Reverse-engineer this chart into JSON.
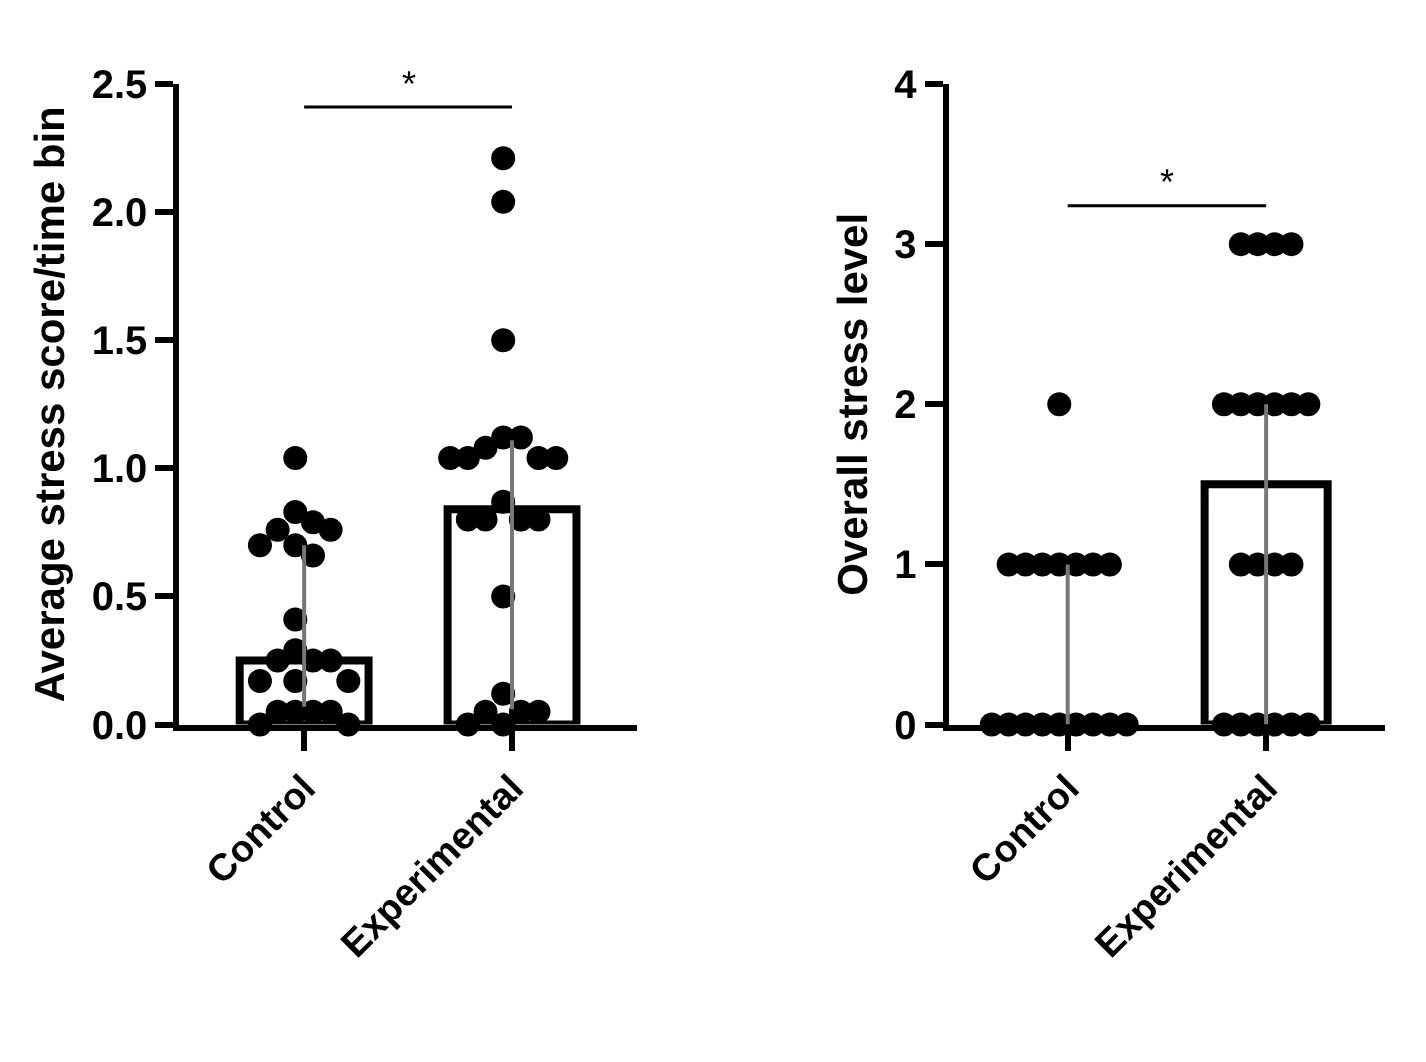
{
  "chart_data": [
    {
      "type": "bar",
      "ylabel": "Average stress score/time bin",
      "categories": [
        "Control",
        "Experimental"
      ],
      "values": [
        0.25,
        0.84
      ],
      "color": "#000000",
      "errors": [
        [
          0.07,
          0.7
        ],
        [
          0.06,
          1.11
        ]
      ],
      "ylim": [
        0,
        2.5
      ],
      "yticks": [
        {
          "value": 0,
          "label": "0.0"
        },
        0.5,
        {
          "value": 1,
          "label": "1.0"
        },
        1.5,
        {
          "value": 2,
          "label": "2.0"
        },
        2.5
      ],
      "annotations": [
        "*"
      ],
      "series": [
        {
          "type": "scatter",
          "color": "#000000",
          "marker": "circle",
          "x": [
            "Control",
            "Control",
            "Control",
            "Control",
            "Control",
            "Control",
            "Control",
            "Control",
            "Control",
            "Control",
            "Control",
            "Control",
            "Control",
            "Control",
            "Control",
            "Control",
            "Control",
            "Control",
            "Control",
            "Control",
            "Control",
            "Control"
          ],
          "values": [
            1.04,
            0.83,
            0.79,
            0.76,
            0.76,
            0.7,
            0.7,
            0.66,
            0.41,
            0.29,
            0.25,
            0.25,
            0.25,
            0.17,
            0.17,
            0.17,
            0.05,
            0.05,
            0.05,
            0.05,
            0.0,
            0.0
          ]
        },
        {
          "type": "scatter",
          "color": "#000000",
          "marker": "circle",
          "x": [
            "Experimental",
            "Experimental",
            "Experimental",
            "Experimental",
            "Experimental",
            "Experimental",
            "Experimental",
            "Experimental",
            "Experimental",
            "Experimental",
            "Experimental",
            "Experimental",
            "Experimental",
            "Experimental",
            "Experimental",
            "Experimental",
            "Experimental",
            "Experimental",
            "Experimental",
            "Experimental",
            "Experimental",
            "Experimental"
          ],
          "values": [
            2.21,
            2.04,
            1.5,
            1.12,
            1.12,
            1.08,
            1.04,
            1.04,
            1.04,
            1.04,
            0.87,
            0.8,
            0.8,
            0.8,
            0.8,
            0.5,
            0.12,
            0.05,
            0.05,
            0.05,
            0.0,
            0.0
          ]
        }
      ]
    },
    {
      "type": "bar",
      "ylabel": "Overall stress level",
      "categories": [
        "Control",
        "Experimental"
      ],
      "values": [
        0,
        1.5
      ],
      "color": "#000000",
      "errors": [
        [
          0,
          1
        ],
        [
          0,
          2
        ]
      ],
      "ylim": [
        0,
        4
      ],
      "yticks": [
        0,
        1,
        2,
        3,
        4
      ],
      "annotations": [
        "*"
      ],
      "series": [
        {
          "type": "scatter",
          "color": "#000000",
          "marker": "circle",
          "x": [
            "Control",
            "Control",
            "Control",
            "Control",
            "Control",
            "Control",
            "Control",
            "Control",
            "Control",
            "Control",
            "Control",
            "Control",
            "Control",
            "Control",
            "Control",
            "Control",
            "Control"
          ],
          "values": [
            2,
            1,
            1,
            1,
            1,
            1,
            1,
            1,
            0,
            0,
            0,
            0,
            0,
            0,
            0,
            0,
            0
          ]
        },
        {
          "type": "scatter",
          "color": "#000000",
          "marker": "circle",
          "x": [
            "Experimental",
            "Experimental",
            "Experimental",
            "Experimental",
            "Experimental",
            "Experimental",
            "Experimental",
            "Experimental",
            "Experimental",
            "Experimental",
            "Experimental",
            "Experimental",
            "Experimental",
            "Experimental",
            "Experimental",
            "Experimental",
            "Experimental",
            "Experimental",
            "Experimental",
            "Experimental"
          ],
          "values": [
            3,
            3,
            3,
            3,
            2,
            2,
            2,
            2,
            2,
            2,
            1,
            1,
            1,
            1,
            0,
            0,
            0,
            0,
            0,
            0
          ]
        }
      ]
    }
  ]
}
